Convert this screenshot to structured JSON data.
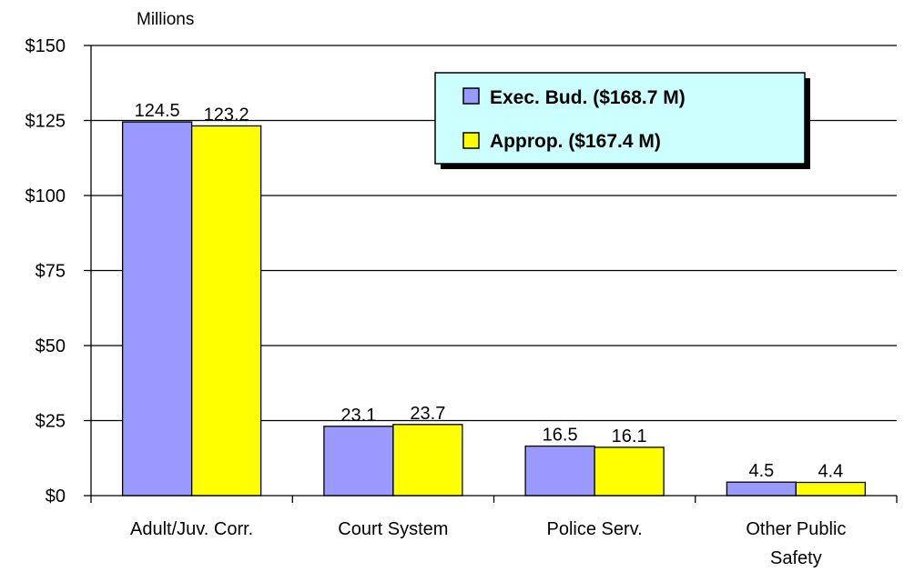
{
  "chart_data": {
    "type": "bar",
    "unit_label": "Millions",
    "categories": [
      "Adult/Juv. Corr.",
      "Court System",
      "Police Serv.",
      "Other Public Safety"
    ],
    "category_lines": [
      [
        "Adult/Juv. Corr."
      ],
      [
        "Court System"
      ],
      [
        "Police Serv."
      ],
      [
        "Other Public",
        "Safety"
      ]
    ],
    "series": [
      {
        "name": "Exec. Bud. ($168.7 M)",
        "color": "#9999ff",
        "values": [
          124.5,
          23.1,
          16.5,
          4.5
        ],
        "labels": [
          "124.5",
          "23.1",
          "16.5",
          "4.5"
        ]
      },
      {
        "name": "Approp. ($167.4 M)",
        "color": "#ffff00",
        "values": [
          123.2,
          23.7,
          16.1,
          4.4
        ],
        "labels": [
          "123.2",
          "23.7",
          "16.1",
          "4.4"
        ]
      }
    ],
    "ylim": [
      0,
      150
    ],
    "yticks": [
      0,
      25,
      50,
      75,
      100,
      125,
      150
    ],
    "ytick_labels": [
      "$0",
      "$25",
      "$50",
      "$75",
      "$100",
      "$125",
      "$150"
    ],
    "grid": true,
    "legend_position": "top-right",
    "legend_background": "#ccffff"
  }
}
